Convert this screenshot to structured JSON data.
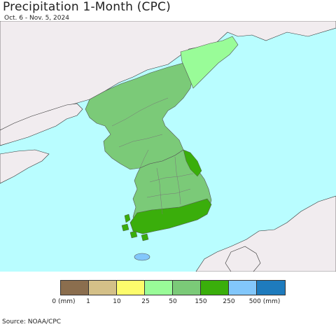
{
  "title": "Precipitation 1-Month (CPC)",
  "subtitle": "Oct. 6 - Nov. 5, 2024",
  "source": "Source: NOAA/CPC",
  "colors": {
    "ocean": "#b9fdff",
    "land_outside": "#f1ecef",
    "class_25_50": "#99fc98",
    "class_50_150": "#7bca78",
    "class_150_250": "#3aae0b",
    "class_250_500": "#82c7fb",
    "border": "#555555"
  },
  "legend": {
    "swatches": [
      {
        "color": "#8b6e4e"
      },
      {
        "color": "#d4c088"
      },
      {
        "color": "#fdfc6c"
      },
      {
        "color": "#99fc98"
      },
      {
        "color": "#7bca78"
      },
      {
        "color": "#3aae0b"
      },
      {
        "color": "#82c7fb"
      },
      {
        "color": "#1e7bbd"
      }
    ],
    "labels": [
      "0 (mm)",
      "1",
      "10",
      "25",
      "50",
      "150",
      "250",
      "500 (mm)"
    ]
  }
}
